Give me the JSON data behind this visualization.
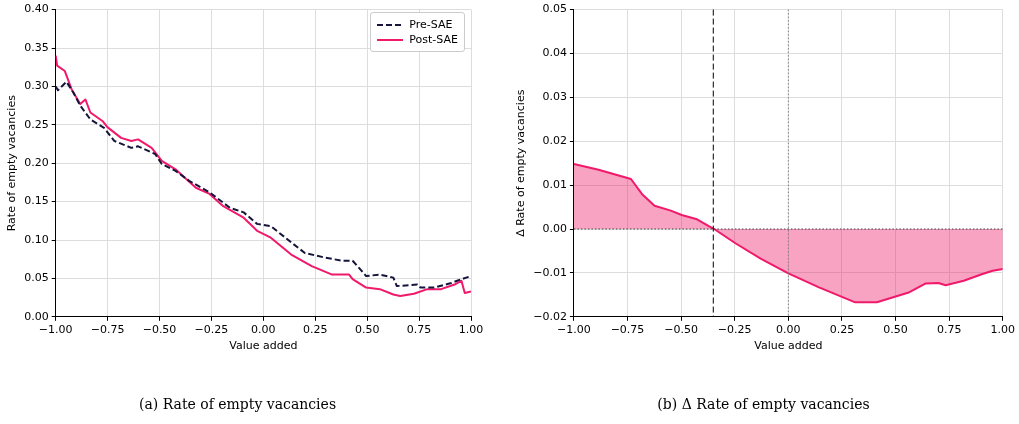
{
  "chart_data": [
    {
      "type": "line",
      "title": "(a) Rate of empty vacancies",
      "xlabel": "Value added",
      "ylabel": "Rate of empty vacancies",
      "legend": "top right",
      "grid": true,
      "xlim": [
        -1,
        1
      ],
      "ylim": [
        0,
        0.4
      ],
      "xticks": [
        {
          "value": -1,
          "label": "−1.00"
        },
        {
          "value": -0.75,
          "label": "−0.75"
        },
        {
          "value": -0.5,
          "label": "−0.50"
        },
        {
          "value": -0.25,
          "label": "−0.25"
        },
        {
          "value": 0,
          "label": "0.00"
        },
        {
          "value": 0.25,
          "label": "0.25"
        },
        {
          "value": 0.5,
          "label": "0.50"
        },
        {
          "value": 0.75,
          "label": "0.75"
        },
        {
          "value": 1,
          "label": "1.00"
        }
      ],
      "yticks": [
        {
          "value": 0,
          "label": "0.00"
        },
        {
          "value": 0.05,
          "label": "0.05"
        },
        {
          "value": 0.1,
          "label": "0.10"
        },
        {
          "value": 0.15,
          "label": "0.15"
        },
        {
          "value": 0.2,
          "label": "0.20"
        },
        {
          "value": 0.25,
          "label": "0.25"
        },
        {
          "value": 0.3,
          "label": "0.30"
        },
        {
          "value": 0.35,
          "label": "0.35"
        },
        {
          "value": 0.4,
          "label": "0.40"
        }
      ],
      "series": [
        {
          "name": "Pre-SAE",
          "color": "#14143c",
          "line_style": "dashed",
          "x": [
            -1,
            -0.989,
            -0.948,
            -0.915,
            -0.882,
            -0.833,
            -0.767,
            -0.718,
            -0.636,
            -0.603,
            -0.521,
            -0.489,
            -0.423,
            -0.357,
            -0.259,
            -0.161,
            -0.095,
            -0.03,
            0.036,
            0.134,
            0.2,
            0.298,
            0.38,
            0.43,
            0.495,
            0.561,
            0.626,
            0.643,
            0.741,
            0.757,
            0.823,
            0.905,
            0.954,
            1
          ],
          "values": [
            0.3,
            0.295,
            0.306,
            0.292,
            0.275,
            0.257,
            0.246,
            0.229,
            0.22,
            0.222,
            0.212,
            0.199,
            0.19,
            0.177,
            0.162,
            0.142,
            0.136,
            0.121,
            0.118,
            0.097,
            0.083,
            0.077,
            0.073,
            0.073,
            0.053,
            0.055,
            0.051,
            0.04,
            0.042,
            0.038,
            0.038,
            0.044,
            0.049,
            0.053
          ]
        },
        {
          "name": "Post-SAE",
          "color": "#f0196a",
          "line_style": "solid",
          "x": [
            -1,
            -0.993,
            -0.956,
            -0.923,
            -0.882,
            -0.857,
            -0.833,
            -0.775,
            -0.751,
            -0.685,
            -0.636,
            -0.603,
            -0.538,
            -0.489,
            -0.423,
            -0.325,
            -0.259,
            -0.193,
            -0.095,
            -0.03,
            0.036,
            0.134,
            0.233,
            0.331,
            0.413,
            0.43,
            0.495,
            0.561,
            0.626,
            0.659,
            0.725,
            0.79,
            0.856,
            0.921,
            0.954,
            0.97,
            1
          ],
          "values": [
            0.34,
            0.327,
            0.32,
            0.296,
            0.277,
            0.283,
            0.266,
            0.255,
            0.247,
            0.233,
            0.229,
            0.231,
            0.22,
            0.203,
            0.192,
            0.168,
            0.16,
            0.144,
            0.129,
            0.112,
            0.103,
            0.081,
            0.066,
            0.055,
            0.055,
            0.049,
            0.038,
            0.036,
            0.029,
            0.027,
            0.03,
            0.036,
            0.036,
            0.042,
            0.047,
            0.031,
            0.033
          ]
        }
      ]
    },
    {
      "type": "area",
      "title": "(b) Δ Rate of empty vacancies",
      "xlabel": "Value added",
      "ylabel": "Δ Rate of empty vacancies",
      "grid": true,
      "xlim": [
        -1,
        1
      ],
      "ylim": [
        -0.02,
        0.05
      ],
      "xticks": [
        {
          "value": -1,
          "label": "−1.00"
        },
        {
          "value": -0.75,
          "label": "−0.75"
        },
        {
          "value": -0.5,
          "label": "−0.50"
        },
        {
          "value": -0.25,
          "label": "−0.25"
        },
        {
          "value": 0,
          "label": "0.00"
        },
        {
          "value": 0.25,
          "label": "0.25"
        },
        {
          "value": 0.5,
          "label": "0.50"
        },
        {
          "value": 0.75,
          "label": "0.75"
        },
        {
          "value": 1,
          "label": "1.00"
        }
      ],
      "yticks": [
        {
          "value": -0.02,
          "label": "−0.02"
        },
        {
          "value": -0.01,
          "label": "−0.01"
        },
        {
          "value": 0,
          "label": "0.00"
        },
        {
          "value": 0.01,
          "label": "0.01"
        },
        {
          "value": 0.02,
          "label": "0.02"
        },
        {
          "value": 0.03,
          "label": "0.03"
        },
        {
          "value": 0.04,
          "label": "0.04"
        },
        {
          "value": 0.05,
          "label": "0.05"
        }
      ],
      "ref_lines": [
        {
          "axis": "x",
          "value": -0.35,
          "color": "#000000",
          "line_style": "dashed"
        },
        {
          "axis": "x",
          "value": 0,
          "color": "#808080",
          "line_style": "dotted"
        },
        {
          "axis": "y",
          "value": 0,
          "color": "#404040",
          "line_style": "dotted"
        }
      ],
      "series": [
        {
          "color": "#f0196a",
          "x": [
            -1,
            -0.885,
            -0.734,
            -0.683,
            -0.624,
            -0.548,
            -0.497,
            -0.43,
            -0.346,
            -0.245,
            -0.127,
            0,
            0.143,
            0.312,
            0.413,
            0.565,
            0.641,
            0.7,
            0.734,
            0.818,
            0.902,
            0.953,
            1
          ],
          "values": [
            0.0148,
            0.0135,
            0.0114,
            0.008,
            0.0053,
            0.0042,
            0.0032,
            0.0023,
            0,
            -0.0033,
            -0.0068,
            -0.0101,
            -0.0133,
            -0.0167,
            -0.0167,
            -0.0144,
            -0.0124,
            -0.0123,
            -0.0128,
            -0.0118,
            -0.0103,
            -0.0095,
            -0.0091
          ]
        }
      ]
    }
  ]
}
